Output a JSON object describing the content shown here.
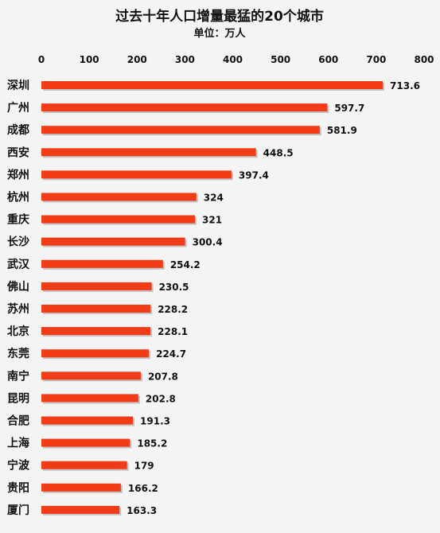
{
  "chart_data": {
    "type": "bar",
    "orientation": "horizontal",
    "title": "过去十年人口增量最猛的20个城市",
    "subtitle": "单位：万人",
    "xlim": [
      0,
      800
    ],
    "ticks": [
      0,
      100,
      200,
      300,
      400,
      500,
      600,
      700,
      800
    ],
    "axis_position": "top",
    "grid": false,
    "legend": "none",
    "bar_color": "#f23b17",
    "categories": [
      "深圳",
      "广州",
      "成都",
      "西安",
      "郑州",
      "杭州",
      "重庆",
      "长沙",
      "武汉",
      "佛山",
      "苏州",
      "北京",
      "东莞",
      "南宁",
      "昆明",
      "合肥",
      "上海",
      "宁波",
      "贵阳",
      "厦门"
    ],
    "values": [
      713.6,
      597.7,
      581.9,
      448.5,
      397.4,
      324,
      321,
      300.4,
      254.2,
      230.5,
      228.2,
      228.1,
      224.7,
      207.8,
      202.8,
      191.3,
      185.2,
      179,
      166.2,
      163.3
    ],
    "value_labels": [
      "713.6",
      "597.7",
      "581.9",
      "448.5",
      "397.4",
      "324",
      "321",
      "300.4",
      "254.2",
      "230.5",
      "228.2",
      "228.1",
      "224.7",
      "207.8",
      "202.8",
      "191.3",
      "185.2",
      "179",
      "166.2",
      "163.3"
    ]
  }
}
